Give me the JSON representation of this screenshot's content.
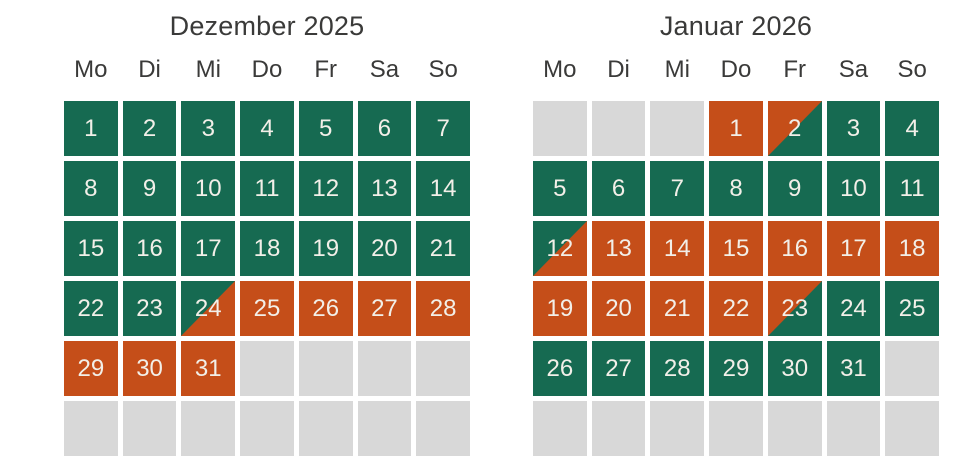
{
  "colors": {
    "available": "#166a51",
    "occupied": "#c54e19",
    "empty": "#d8d8d8",
    "day_text": "#f2efe8",
    "heading_text": "#3a3a39"
  },
  "calendar": {
    "months": [
      {
        "title": "Dezember 2025",
        "weekdays": [
          "Mo",
          "Di",
          "Mi",
          "Do",
          "Fr",
          "Sa",
          "So"
        ],
        "cells": [
          {
            "day": "1",
            "state": "available"
          },
          {
            "day": "2",
            "state": "available"
          },
          {
            "day": "3",
            "state": "available"
          },
          {
            "day": "4",
            "state": "available"
          },
          {
            "day": "5",
            "state": "available"
          },
          {
            "day": "6",
            "state": "available"
          },
          {
            "day": "7",
            "state": "available"
          },
          {
            "day": "8",
            "state": "available"
          },
          {
            "day": "9",
            "state": "available"
          },
          {
            "day": "10",
            "state": "available"
          },
          {
            "day": "11",
            "state": "available"
          },
          {
            "day": "12",
            "state": "available"
          },
          {
            "day": "13",
            "state": "available"
          },
          {
            "day": "14",
            "state": "available"
          },
          {
            "day": "15",
            "state": "available"
          },
          {
            "day": "16",
            "state": "available"
          },
          {
            "day": "17",
            "state": "available"
          },
          {
            "day": "18",
            "state": "available"
          },
          {
            "day": "19",
            "state": "available"
          },
          {
            "day": "20",
            "state": "available"
          },
          {
            "day": "21",
            "state": "available"
          },
          {
            "day": "22",
            "state": "available"
          },
          {
            "day": "23",
            "state": "available"
          },
          {
            "day": "24",
            "state": "available-occupied"
          },
          {
            "day": "25",
            "state": "occupied"
          },
          {
            "day": "26",
            "state": "occupied"
          },
          {
            "day": "27",
            "state": "occupied"
          },
          {
            "day": "28",
            "state": "occupied"
          },
          {
            "day": "29",
            "state": "occupied"
          },
          {
            "day": "30",
            "state": "occupied"
          },
          {
            "day": "31",
            "state": "occupied"
          },
          {
            "day": "",
            "state": "empty"
          },
          {
            "day": "",
            "state": "empty"
          },
          {
            "day": "",
            "state": "empty"
          },
          {
            "day": "",
            "state": "empty"
          },
          {
            "day": "",
            "state": "empty"
          },
          {
            "day": "",
            "state": "empty"
          },
          {
            "day": "",
            "state": "empty"
          },
          {
            "day": "",
            "state": "empty"
          },
          {
            "day": "",
            "state": "empty"
          },
          {
            "day": "",
            "state": "empty"
          },
          {
            "day": "",
            "state": "empty"
          }
        ]
      },
      {
        "title": "Januar 2026",
        "weekdays": [
          "Mo",
          "Di",
          "Mi",
          "Do",
          "Fr",
          "Sa",
          "So"
        ],
        "cells": [
          {
            "day": "",
            "state": "empty"
          },
          {
            "day": "",
            "state": "empty"
          },
          {
            "day": "",
            "state": "empty"
          },
          {
            "day": "1",
            "state": "occupied"
          },
          {
            "day": "2",
            "state": "occupied-available"
          },
          {
            "day": "3",
            "state": "available"
          },
          {
            "day": "4",
            "state": "available"
          },
          {
            "day": "5",
            "state": "available"
          },
          {
            "day": "6",
            "state": "available"
          },
          {
            "day": "7",
            "state": "available"
          },
          {
            "day": "8",
            "state": "available"
          },
          {
            "day": "9",
            "state": "available"
          },
          {
            "day": "10",
            "state": "available"
          },
          {
            "day": "11",
            "state": "available"
          },
          {
            "day": "12",
            "state": "available-occupied"
          },
          {
            "day": "13",
            "state": "occupied"
          },
          {
            "day": "14",
            "state": "occupied"
          },
          {
            "day": "15",
            "state": "occupied"
          },
          {
            "day": "16",
            "state": "occupied"
          },
          {
            "day": "17",
            "state": "occupied"
          },
          {
            "day": "18",
            "state": "occupied"
          },
          {
            "day": "19",
            "state": "occupied"
          },
          {
            "day": "20",
            "state": "occupied"
          },
          {
            "day": "21",
            "state": "occupied"
          },
          {
            "day": "22",
            "state": "occupied"
          },
          {
            "day": "23",
            "state": "occupied-available"
          },
          {
            "day": "24",
            "state": "available"
          },
          {
            "day": "25",
            "state": "available"
          },
          {
            "day": "26",
            "state": "available"
          },
          {
            "day": "27",
            "state": "available"
          },
          {
            "day": "28",
            "state": "available"
          },
          {
            "day": "29",
            "state": "available"
          },
          {
            "day": "30",
            "state": "available"
          },
          {
            "day": "31",
            "state": "available"
          },
          {
            "day": "",
            "state": "empty"
          },
          {
            "day": "",
            "state": "empty"
          },
          {
            "day": "",
            "state": "empty"
          },
          {
            "day": "",
            "state": "empty"
          },
          {
            "day": "",
            "state": "empty"
          },
          {
            "day": "",
            "state": "empty"
          },
          {
            "day": "",
            "state": "empty"
          },
          {
            "day": "",
            "state": "empty"
          }
        ]
      }
    ]
  }
}
